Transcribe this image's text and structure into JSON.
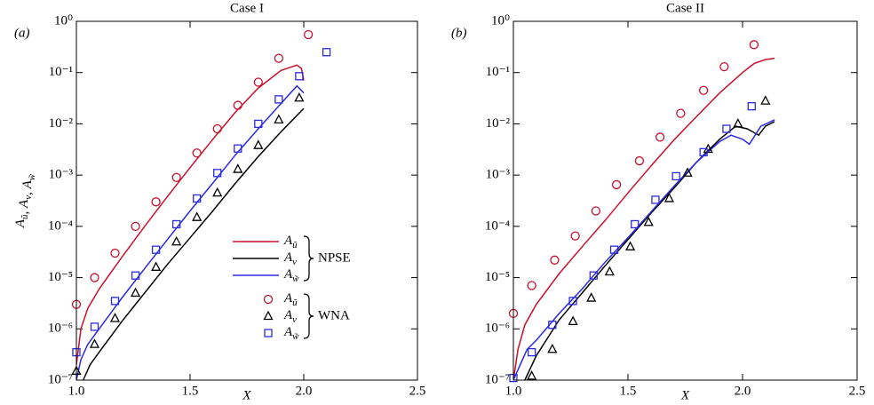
{
  "chart_data": [
    {
      "type": "line",
      "title": "Case I",
      "panel_label": "(a)",
      "x_label": "X",
      "y_label": "Aũ, Av, Aw̃",
      "xlim": [
        1.0,
        2.5
      ],
      "xticks": [
        {
          "value": 1.0,
          "label": "1.0"
        },
        {
          "value": 1.5,
          "label": "1.5"
        },
        {
          "value": 2.0,
          "label": "2.0"
        },
        {
          "value": 2.5,
          "label": "2.5"
        }
      ],
      "ylim": [
        1e-07,
        1
      ],
      "log_y": true,
      "yticks": [
        {
          "value": 1e-07,
          "label": "10⁻⁷"
        },
        {
          "value": 1e-06,
          "label": "10⁻⁶"
        },
        {
          "value": 1e-05,
          "label": "10⁻⁵"
        },
        {
          "value": 0.0001,
          "label": "10⁻⁴"
        },
        {
          "value": 0.001,
          "label": "10⁻³"
        },
        {
          "value": 0.01,
          "label": "10⁻²"
        },
        {
          "value": 0.1,
          "label": "10⁻¹"
        },
        {
          "value": 1,
          "label": "10⁰"
        }
      ],
      "legend": true,
      "legend_groups": [
        "NPSE",
        "WNA"
      ],
      "series": [
        {
          "name": "Aũ",
          "color": "#c8102e",
          "style": "line",
          "x": [
            1.0,
            1.02,
            1.05,
            1.1,
            1.2,
            1.3,
            1.4,
            1.5,
            1.6,
            1.7,
            1.8,
            1.9,
            1.97,
            1.99,
            2.0
          ],
          "values": [
            2e-07,
            1e-06,
            2.5e-06,
            6e-06,
            2.5e-05,
            0.0001,
            0.00038,
            0.0014,
            0.005,
            0.017,
            0.05,
            0.11,
            0.14,
            0.12,
            0.07
          ]
        },
        {
          "name": "Av",
          "color": "#000000",
          "style": "line",
          "x": [
            1.03,
            1.06,
            1.1,
            1.2,
            1.3,
            1.4,
            1.5,
            1.6,
            1.7,
            1.8,
            1.9,
            2.0
          ],
          "values": [
            1e-07,
            2e-07,
            3.5e-07,
            1.4e-06,
            5e-06,
            1.8e-05,
            6e-05,
            0.0002,
            0.0007,
            0.0023,
            0.007,
            0.02
          ]
        },
        {
          "name": "Aw̃",
          "color": "#2a2ae0",
          "style": "line",
          "x": [
            1.0,
            1.02,
            1.05,
            1.1,
            1.2,
            1.3,
            1.4,
            1.5,
            1.6,
            1.7,
            1.8,
            1.9,
            1.97,
            2.0
          ],
          "values": [
            1e-07,
            2.5e-07,
            5e-07,
            1e-06,
            4e-06,
            1.5e-05,
            5.5e-05,
            0.0002,
            0.0007,
            0.0025,
            0.008,
            0.025,
            0.055,
            0.04
          ]
        },
        {
          "name": "Aũ",
          "color": "#c8102e",
          "style": "marker",
          "marker": "circle",
          "x": [
            1.0,
            1.08,
            1.17,
            1.26,
            1.35,
            1.44,
            1.53,
            1.62,
            1.71,
            1.8,
            1.89,
            2.02
          ],
          "values": [
            3e-06,
            1e-05,
            3e-05,
            0.0001,
            0.0003,
            0.0009,
            0.0027,
            0.008,
            0.023,
            0.065,
            0.19,
            0.55
          ]
        },
        {
          "name": "Av",
          "color": "#000000",
          "style": "marker",
          "marker": "triangle",
          "x": [
            1.0,
            1.08,
            1.17,
            1.26,
            1.35,
            1.44,
            1.53,
            1.62,
            1.71,
            1.8,
            1.89,
            1.98
          ],
          "values": [
            1.5e-07,
            5e-07,
            1.6e-06,
            5e-06,
            1.6e-05,
            5e-05,
            0.00015,
            0.00045,
            0.0013,
            0.0038,
            0.012,
            0.032
          ]
        },
        {
          "name": "Aw̃",
          "color": "#2a2ae0",
          "style": "marker",
          "marker": "square",
          "x": [
            1.0,
            1.08,
            1.17,
            1.26,
            1.35,
            1.44,
            1.53,
            1.62,
            1.71,
            1.8,
            1.89,
            1.98,
            2.1
          ],
          "values": [
            3.5e-07,
            1.1e-06,
            3.5e-06,
            1.1e-05,
            3.5e-05,
            0.00011,
            0.00035,
            0.0011,
            0.0033,
            0.01,
            0.03,
            0.085,
            0.25
          ]
        }
      ]
    },
    {
      "type": "line",
      "title": "Case II",
      "panel_label": "(b)",
      "x_label": "X",
      "xlim": [
        1.0,
        2.5
      ],
      "xticks": [
        {
          "value": 1.0,
          "label": "1.0"
        },
        {
          "value": 1.5,
          "label": "1.5"
        },
        {
          "value": 2.0,
          "label": "2.0"
        },
        {
          "value": 2.5,
          "label": "2.5"
        }
      ],
      "ylim": [
        1e-07,
        1
      ],
      "log_y": true,
      "yticks": [
        {
          "value": 1e-07,
          "label": "10⁻⁷"
        },
        {
          "value": 1e-06,
          "label": "10⁻⁶"
        },
        {
          "value": 1e-05,
          "label": "10⁻⁵"
        },
        {
          "value": 0.0001,
          "label": "10⁻⁴"
        },
        {
          "value": 0.001,
          "label": "10⁻³"
        },
        {
          "value": 0.01,
          "label": "10⁻²"
        },
        {
          "value": 0.1,
          "label": "10⁻¹"
        },
        {
          "value": 1,
          "label": "10⁰"
        }
      ],
      "legend": false,
      "series": [
        {
          "color": "#c8102e",
          "style": "line",
          "x": [
            1.0,
            1.02,
            1.05,
            1.1,
            1.2,
            1.3,
            1.4,
            1.5,
            1.6,
            1.7,
            1.8,
            1.9,
            2.0,
            2.05,
            2.1,
            2.14
          ],
          "values": [
            1e-07,
            4e-07,
            1.2e-06,
            3e-06,
            1.2e-05,
            4e-05,
            0.00013,
            0.00045,
            0.0015,
            0.0048,
            0.014,
            0.04,
            0.1,
            0.15,
            0.18,
            0.19
          ]
        },
        {
          "color": "#000000",
          "style": "line",
          "x": [
            1.05,
            1.1,
            1.2,
            1.3,
            1.4,
            1.5,
            1.6,
            1.7,
            1.8,
            1.9,
            1.97,
            2.02,
            2.07,
            2.1,
            2.14
          ],
          "values": [
            1e-07,
            3e-07,
            1.5e-06,
            5e-06,
            1.7e-05,
            5.5e-05,
            0.00018,
            0.00055,
            0.0018,
            0.005,
            0.009,
            0.008,
            0.006,
            0.009,
            0.011
          ]
        },
        {
          "color": "#2a2ae0",
          "style": "line",
          "x": [
            1.0,
            1.03,
            1.06,
            1.1,
            1.2,
            1.3,
            1.4,
            1.5,
            1.6,
            1.7,
            1.8,
            1.9,
            1.95,
            2.0,
            2.03,
            2.08,
            2.14
          ],
          "values": [
            1e-07,
            2e-07,
            4e-07,
            6e-07,
            2e-06,
            6e-06,
            2e-05,
            6e-05,
            0.00019,
            0.0006,
            0.0018,
            0.0045,
            0.006,
            0.005,
            0.004,
            0.009,
            0.012
          ]
        },
        {
          "color": "#c8102e",
          "style": "marker",
          "marker": "circle",
          "x": [
            1.0,
            1.08,
            1.18,
            1.27,
            1.36,
            1.45,
            1.55,
            1.64,
            1.73,
            1.83,
            1.92,
            2.05
          ],
          "values": [
            2e-06,
            7e-06,
            2.2e-05,
            6.5e-05,
            0.0002,
            0.00065,
            0.0019,
            0.0055,
            0.016,
            0.045,
            0.13,
            0.35
          ]
        },
        {
          "color": "#000000",
          "style": "marker",
          "marker": "triangle",
          "x": [
            1.08,
            1.17,
            1.26,
            1.34,
            1.42,
            1.51,
            1.59,
            1.68,
            1.76,
            1.85,
            1.98,
            2.1
          ],
          "values": [
            1.2e-07,
            4e-07,
            1.4e-06,
            4e-06,
            1.3e-05,
            4e-05,
            0.00012,
            0.00035,
            0.0011,
            0.0032,
            0.01,
            0.028
          ]
        },
        {
          "color": "#2a2ae0",
          "style": "marker",
          "marker": "square",
          "x": [
            1.0,
            1.08,
            1.17,
            1.26,
            1.35,
            1.44,
            1.53,
            1.62,
            1.71,
            1.83,
            1.93,
            2.04
          ],
          "values": [
            1.1e-07,
            3.5e-07,
            1.2e-06,
            3.5e-06,
            1.1e-05,
            3.5e-05,
            0.00011,
            0.00033,
            0.00095,
            0.0028,
            0.008,
            0.022
          ]
        }
      ]
    }
  ]
}
